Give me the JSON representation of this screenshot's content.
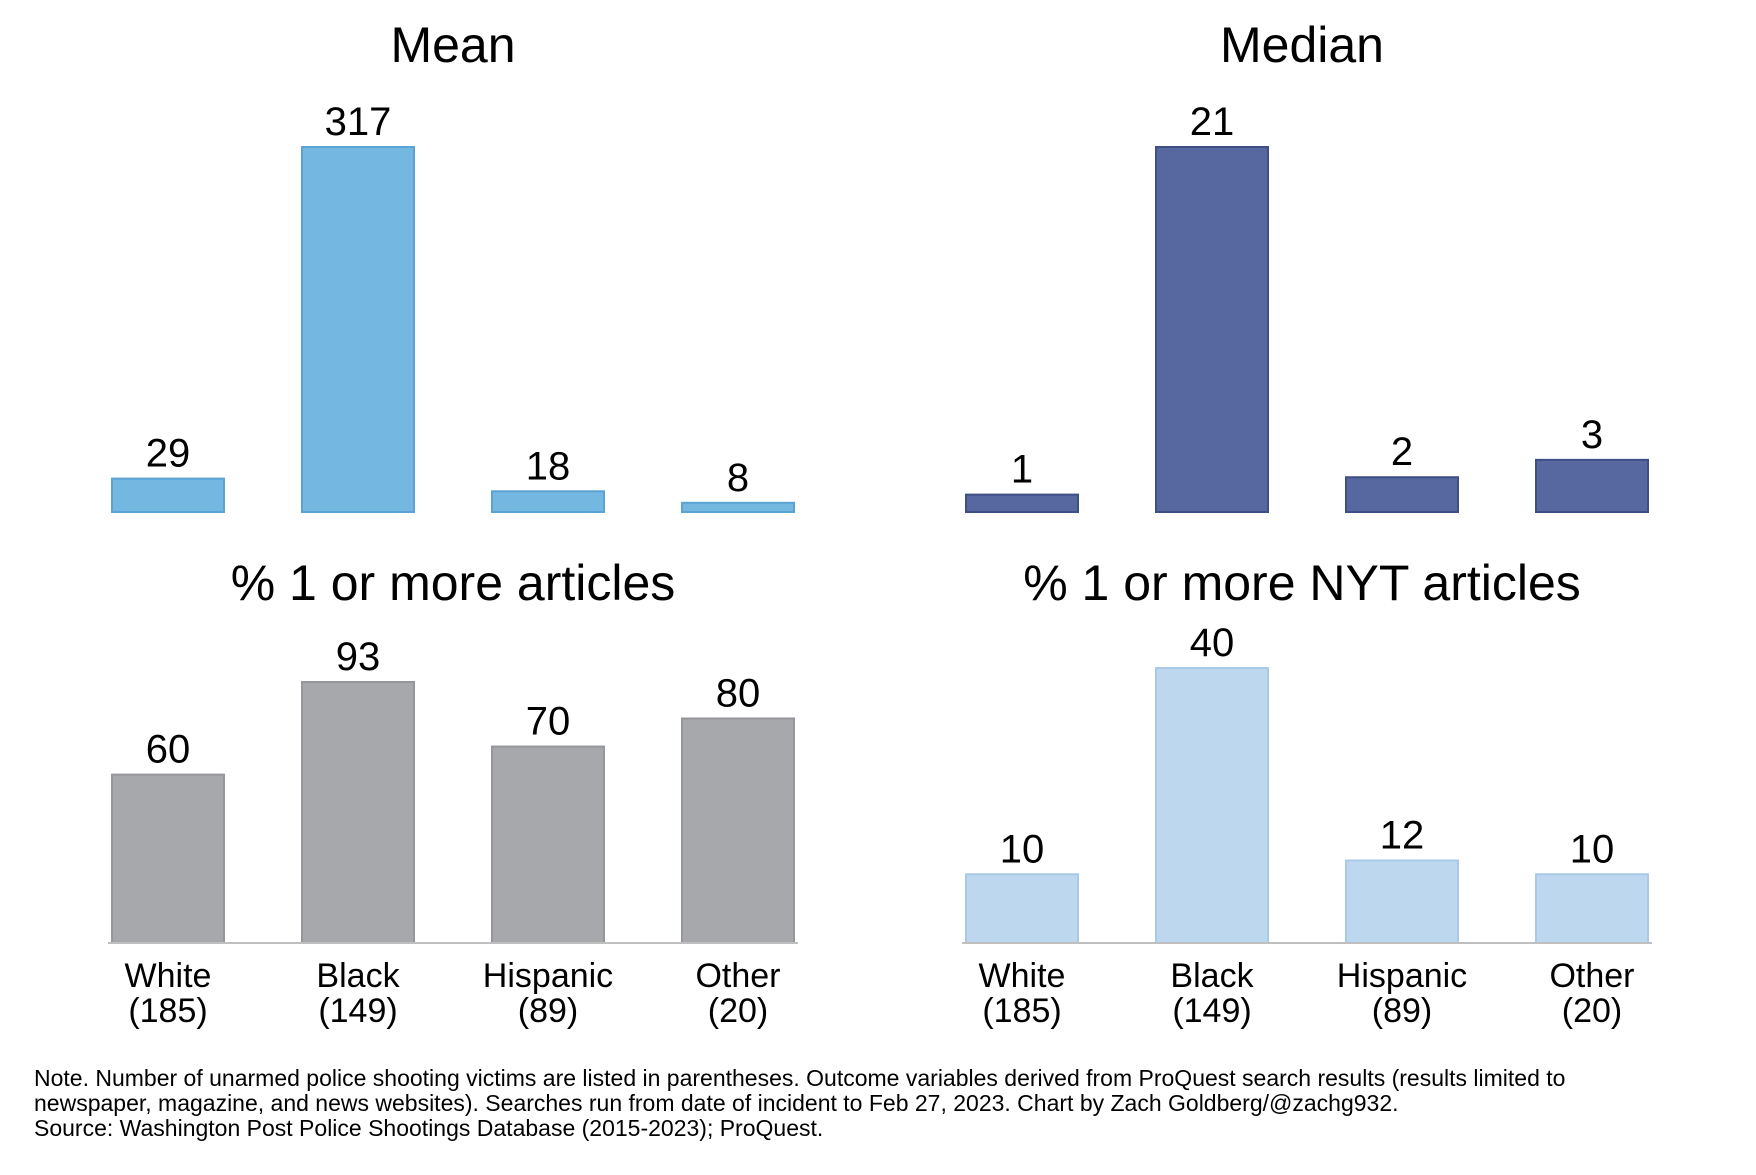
{
  "chart_data": [
    {
      "type": "bar",
      "title": "Mean",
      "categories": [
        "White",
        "Black",
        "Hispanic",
        "Other"
      ],
      "values": [
        29,
        317,
        18,
        8
      ],
      "color": "#74B7E0",
      "stroke": "#5BA3D4",
      "xlabel": "",
      "ylabel": ""
    },
    {
      "type": "bar",
      "title": "Median",
      "categories": [
        "White",
        "Black",
        "Hispanic",
        "Other"
      ],
      "values": [
        1,
        21,
        2,
        3
      ],
      "color": "#56689F",
      "stroke": "#3F4F86",
      "xlabel": "",
      "ylabel": ""
    },
    {
      "type": "bar",
      "title": "% 1 or more articles",
      "categories": [
        "White",
        "Black",
        "Hispanic",
        "Other"
      ],
      "category_counts": [
        "(185)",
        "(149)",
        "(89)",
        "(20)"
      ],
      "values": [
        60,
        93,
        70,
        80
      ],
      "color": "#A7A8AB",
      "stroke": "#96979A",
      "xlabel": "",
      "ylabel": ""
    },
    {
      "type": "bar",
      "title": "% 1 or more NYT articles",
      "categories": [
        "White",
        "Black",
        "Hispanic",
        "Other"
      ],
      "category_counts": [
        "(185)",
        "(149)",
        "(89)",
        "(20)"
      ],
      "values": [
        10,
        40,
        12,
        10
      ],
      "color": "#BDD7EE",
      "stroke": "#A9CAE6",
      "xlabel": "",
      "ylabel": ""
    }
  ],
  "footnote": {
    "line1": "Note. Number of unarmed police shooting victims are listed in parentheses. Outcome variables derived from ProQuest search results (results limited to",
    "line2": "newspaper, magazine, and news websites). Searches run from date of incident to Feb 27, 2023. Chart by Zach Goldberg/@zachg932.",
    "line3": "Source: Washington Post Police Shootings Database (2015-2023); ProQuest."
  }
}
